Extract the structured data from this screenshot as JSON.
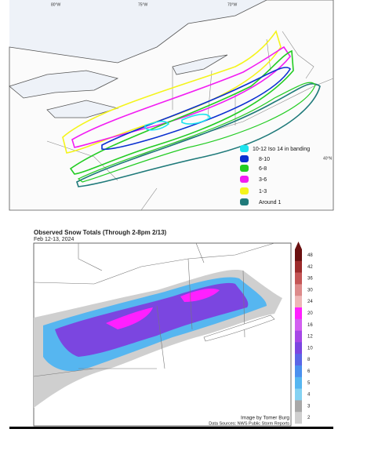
{
  "top_map": {
    "axis_labels": [
      "80°W",
      "75°W",
      "70°W",
      "40°N"
    ],
    "legend": [
      {
        "label": "10-12 Iso 14 in banding",
        "color": "#1ee3ee"
      },
      {
        "label": "8-10",
        "color": "#0a2fd0"
      },
      {
        "label": "6-8",
        "color": "#22cc22"
      },
      {
        "label": "3-6",
        "color": "#f21cf2"
      },
      {
        "label": "1-3",
        "color": "#f4f41c"
      },
      {
        "label": "Around 1",
        "color": "#1f7a7a"
      }
    ]
  },
  "bottom_map": {
    "title": "Observed Snow Totals (Through 2-8pm 2/13)",
    "subtitle": "Feb 12-13, 2024",
    "colorbar": {
      "ticks": [
        48,
        42,
        36,
        30,
        24,
        20,
        16,
        12,
        10,
        8,
        6,
        5,
        4,
        3,
        2
      ],
      "colors": [
        "#6a1010",
        "#9c2b2b",
        "#c45555",
        "#dd8a8a",
        "#eeb6b6",
        "#ff20ff",
        "#d25ff0",
        "#a648e6",
        "#7b46e0",
        "#5a66e6",
        "#4a90ee",
        "#56b6f0",
        "#84d2f2",
        "#a8a8a8",
        "#cfcfcf"
      ]
    },
    "credit": "Image by Tomer Burg",
    "source": "Data Sources: NWS Public Storm Reports"
  }
}
